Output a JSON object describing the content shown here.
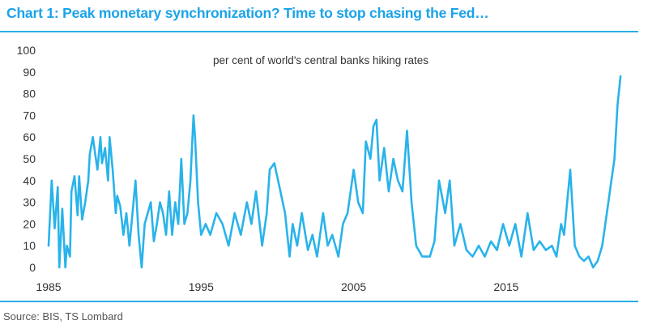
{
  "header": {
    "title": "Chart 1: Peak monetary synchronization? Time to stop chasing the Fed…"
  },
  "footer": {
    "source": "Source: BIS, TS Lombard"
  },
  "colors": {
    "accent": "#1aa3e8",
    "line": "#29b3ea",
    "text": "#333333"
  },
  "chart_data": {
    "type": "line",
    "title": "Chart 1: Peak monetary synchronization? Time to stop chasing the Fed…",
    "annotation": "per cent of world's central banks hiking rates",
    "xlabel": "",
    "ylabel": "",
    "xlim": [
      1985,
      2022.6
    ],
    "ylim": [
      0,
      100
    ],
    "yticks": [
      0,
      10,
      20,
      30,
      40,
      50,
      60,
      70,
      80,
      90,
      100
    ],
    "xticks": [
      1985,
      1995,
      2005,
      2015
    ],
    "grid": false,
    "legend": "none",
    "series": [
      {
        "name": "per cent of world's central banks hiking rates",
        "x": [
          1985.0,
          1985.2,
          1985.4,
          1985.6,
          1985.7,
          1985.9,
          1986.1,
          1986.2,
          1986.4,
          1986.5,
          1986.7,
          1986.9,
          1987.0,
          1987.2,
          1987.4,
          1987.6,
          1987.7,
          1987.9,
          1988.0,
          1988.2,
          1988.4,
          1988.5,
          1988.7,
          1988.9,
          1989.0,
          1989.2,
          1989.4,
          1989.5,
          1989.7,
          1989.9,
          1990.1,
          1990.3,
          1990.5,
          1990.7,
          1990.9,
          1991.1,
          1991.3,
          1991.5,
          1991.7,
          1991.9,
          1992.1,
          1992.3,
          1992.5,
          1992.7,
          1992.9,
          1993.1,
          1993.3,
          1993.5,
          1993.7,
          1993.9,
          1994.1,
          1994.3,
          1994.5,
          1994.6,
          1994.8,
          1995.0,
          1995.3,
          1995.6,
          1996.0,
          1996.4,
          1996.8,
          1997.2,
          1997.6,
          1998.0,
          1998.3,
          1998.6,
          1999.0,
          1999.3,
          1999.5,
          1999.8,
          2000.2,
          2000.5,
          2000.8,
          2001.0,
          2001.3,
          2001.6,
          2002.0,
          2002.3,
          2002.6,
          2003.0,
          2003.3,
          2003.6,
          2004.0,
          2004.3,
          2004.6,
          2005.0,
          2005.3,
          2005.6,
          2005.8,
          2006.1,
          2006.3,
          2006.5,
          2006.7,
          2007.0,
          2007.3,
          2007.6,
          2007.9,
          2008.2,
          2008.5,
          2008.8,
          2009.1,
          2009.5,
          2010.0,
          2010.3,
          2010.6,
          2011.0,
          2011.3,
          2011.6,
          2012.0,
          2012.4,
          2012.8,
          2013.2,
          2013.6,
          2014.0,
          2014.4,
          2014.8,
          2015.2,
          2015.6,
          2016.0,
          2016.4,
          2016.8,
          2017.2,
          2017.6,
          2018.0,
          2018.3,
          2018.6,
          2018.8,
          2019.0,
          2019.2,
          2019.5,
          2019.8,
          2020.1,
          2020.4,
          2020.7,
          2021.0,
          2021.3,
          2021.6,
          2021.9,
          2022.1,
          2022.3,
          2022.5
        ],
        "values": [
          10,
          40,
          18,
          37,
          0,
          27,
          0,
          10,
          5,
          35,
          42,
          24,
          42,
          22,
          30,
          40,
          52,
          60,
          55,
          45,
          60,
          48,
          55,
          40,
          60,
          45,
          25,
          33,
          28,
          15,
          25,
          10,
          25,
          40,
          15,
          0,
          20,
          25,
          30,
          12,
          20,
          30,
          25,
          15,
          35,
          15,
          30,
          20,
          50,
          20,
          25,
          40,
          70,
          60,
          30,
          15,
          20,
          15,
          25,
          20,
          10,
          25,
          15,
          30,
          20,
          35,
          10,
          25,
          45,
          48,
          35,
          25,
          5,
          20,
          10,
          25,
          8,
          15,
          5,
          25,
          10,
          15,
          5,
          20,
          25,
          45,
          30,
          25,
          58,
          50,
          65,
          68,
          40,
          55,
          35,
          50,
          40,
          35,
          63,
          30,
          10,
          5,
          5,
          12,
          40,
          25,
          40,
          10,
          20,
          8,
          5,
          10,
          5,
          12,
          8,
          20,
          10,
          20,
          5,
          25,
          8,
          12,
          8,
          10,
          5,
          20,
          15,
          30,
          45,
          10,
          5,
          3,
          5,
          0,
          3,
          10,
          25,
          40,
          50,
          75,
          88
        ]
      }
    ]
  }
}
